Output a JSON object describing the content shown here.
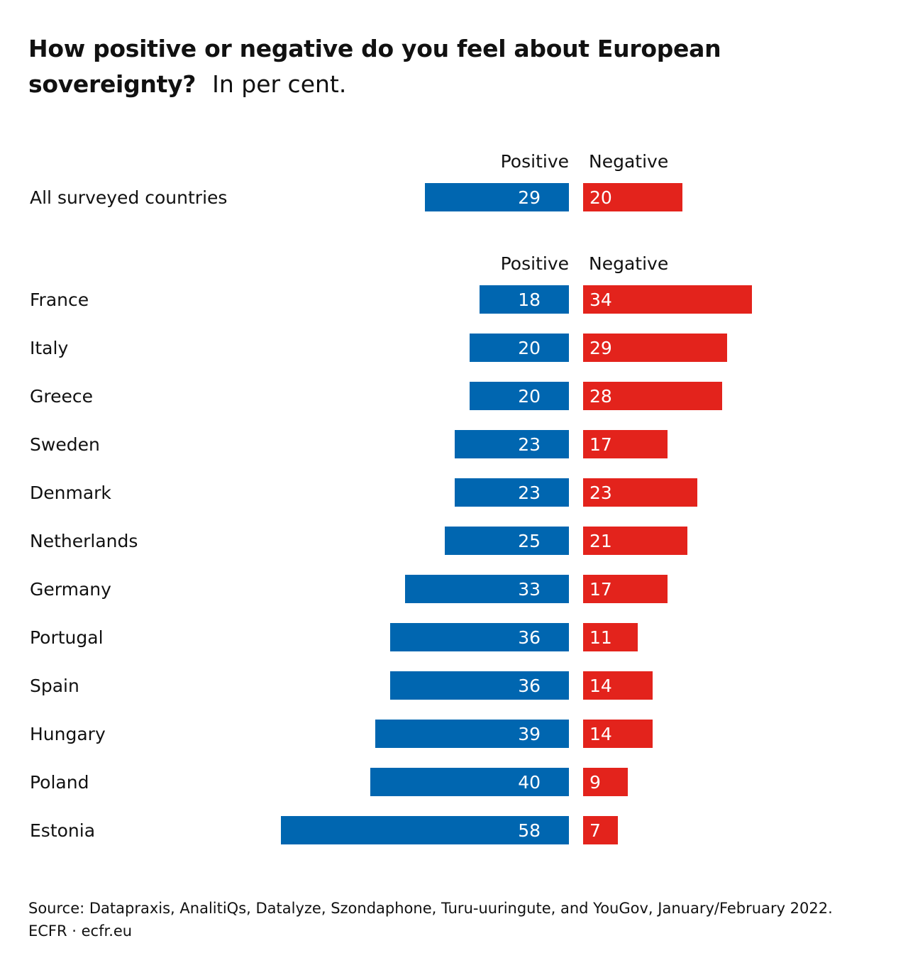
{
  "title": {
    "bold": "How positive or negative do you feel about European sovereignty?",
    "rest": "In per cent."
  },
  "chart_data": [
    {
      "type": "bar",
      "orientation": "horizontal-diverging",
      "legend": {
        "positive": "Positive",
        "negative": "Negative"
      },
      "categories": [
        "All surveyed countries"
      ],
      "series": [
        {
          "name": "Positive",
          "color": "#0066b0",
          "values": [
            29
          ]
        },
        {
          "name": "Negative",
          "color": "#e3231c",
          "values": [
            20
          ]
        }
      ]
    },
    {
      "type": "bar",
      "orientation": "horizontal-diverging",
      "legend": {
        "positive": "Positive",
        "negative": "Negative"
      },
      "categories": [
        "France",
        "Italy",
        "Greece",
        "Sweden",
        "Denmark",
        "Netherlands",
        "Germany",
        "Portugal",
        "Spain",
        "Hungary",
        "Poland",
        "Estonia"
      ],
      "series": [
        {
          "name": "Positive",
          "color": "#0066b0",
          "values": [
            18,
            20,
            20,
            23,
            23,
            25,
            33,
            36,
            36,
            39,
            40,
            58
          ]
        },
        {
          "name": "Negative",
          "color": "#e3231c",
          "values": [
            34,
            29,
            28,
            17,
            23,
            21,
            17,
            11,
            14,
            14,
            9,
            7
          ]
        }
      ]
    }
  ],
  "source": {
    "line1": "Source: Datapraxis, AnalitiQs, Datalyze, Szondaphone, Turu-uuringute, and YouGov, January/February 2022.",
    "line2": "ECFR · ecfr.eu"
  }
}
